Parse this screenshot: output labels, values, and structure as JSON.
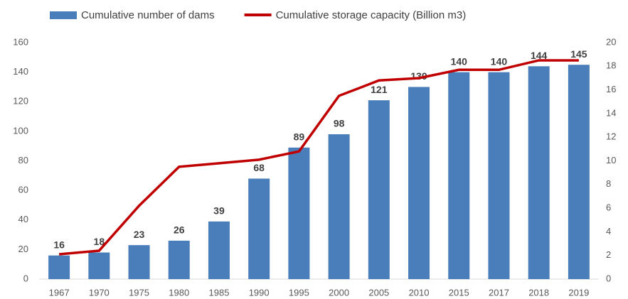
{
  "chart_data": {
    "type": "bar_line",
    "categories": [
      "1967",
      "1970",
      "1975",
      "1980",
      "1985",
      "1990",
      "1995",
      "2000",
      "2005",
      "2010",
      "2015",
      "2017",
      "2018",
      "2019"
    ],
    "series": [
      {
        "name": "Cumulative number of dams",
        "color": "#4a7ebb",
        "type": "bar",
        "values": [
          16,
          18,
          23,
          26,
          39,
          68,
          89,
          98,
          121,
          130,
          140,
          140,
          144,
          145
        ]
      },
      {
        "name": "Cumulative storage capacity (Billion m3)",
        "color": "#c00000",
        "type": "line",
        "axis": "y2",
        "values": [
          2.1,
          2.4,
          6.2,
          9.5,
          9.8,
          10.1,
          10.8,
          15.5,
          16.8,
          17.0,
          17.7,
          17.7,
          18.5,
          18.5
        ]
      }
    ],
    "ylim": [
      0,
      160
    ],
    "yticks": [
      0,
      20,
      40,
      60,
      80,
      100,
      120,
      140,
      160
    ],
    "y2lim": [
      0,
      20
    ],
    "y2ticks": [
      0,
      2,
      4,
      6,
      8,
      10,
      12,
      14,
      16,
      18,
      20
    ],
    "grid": false
  }
}
